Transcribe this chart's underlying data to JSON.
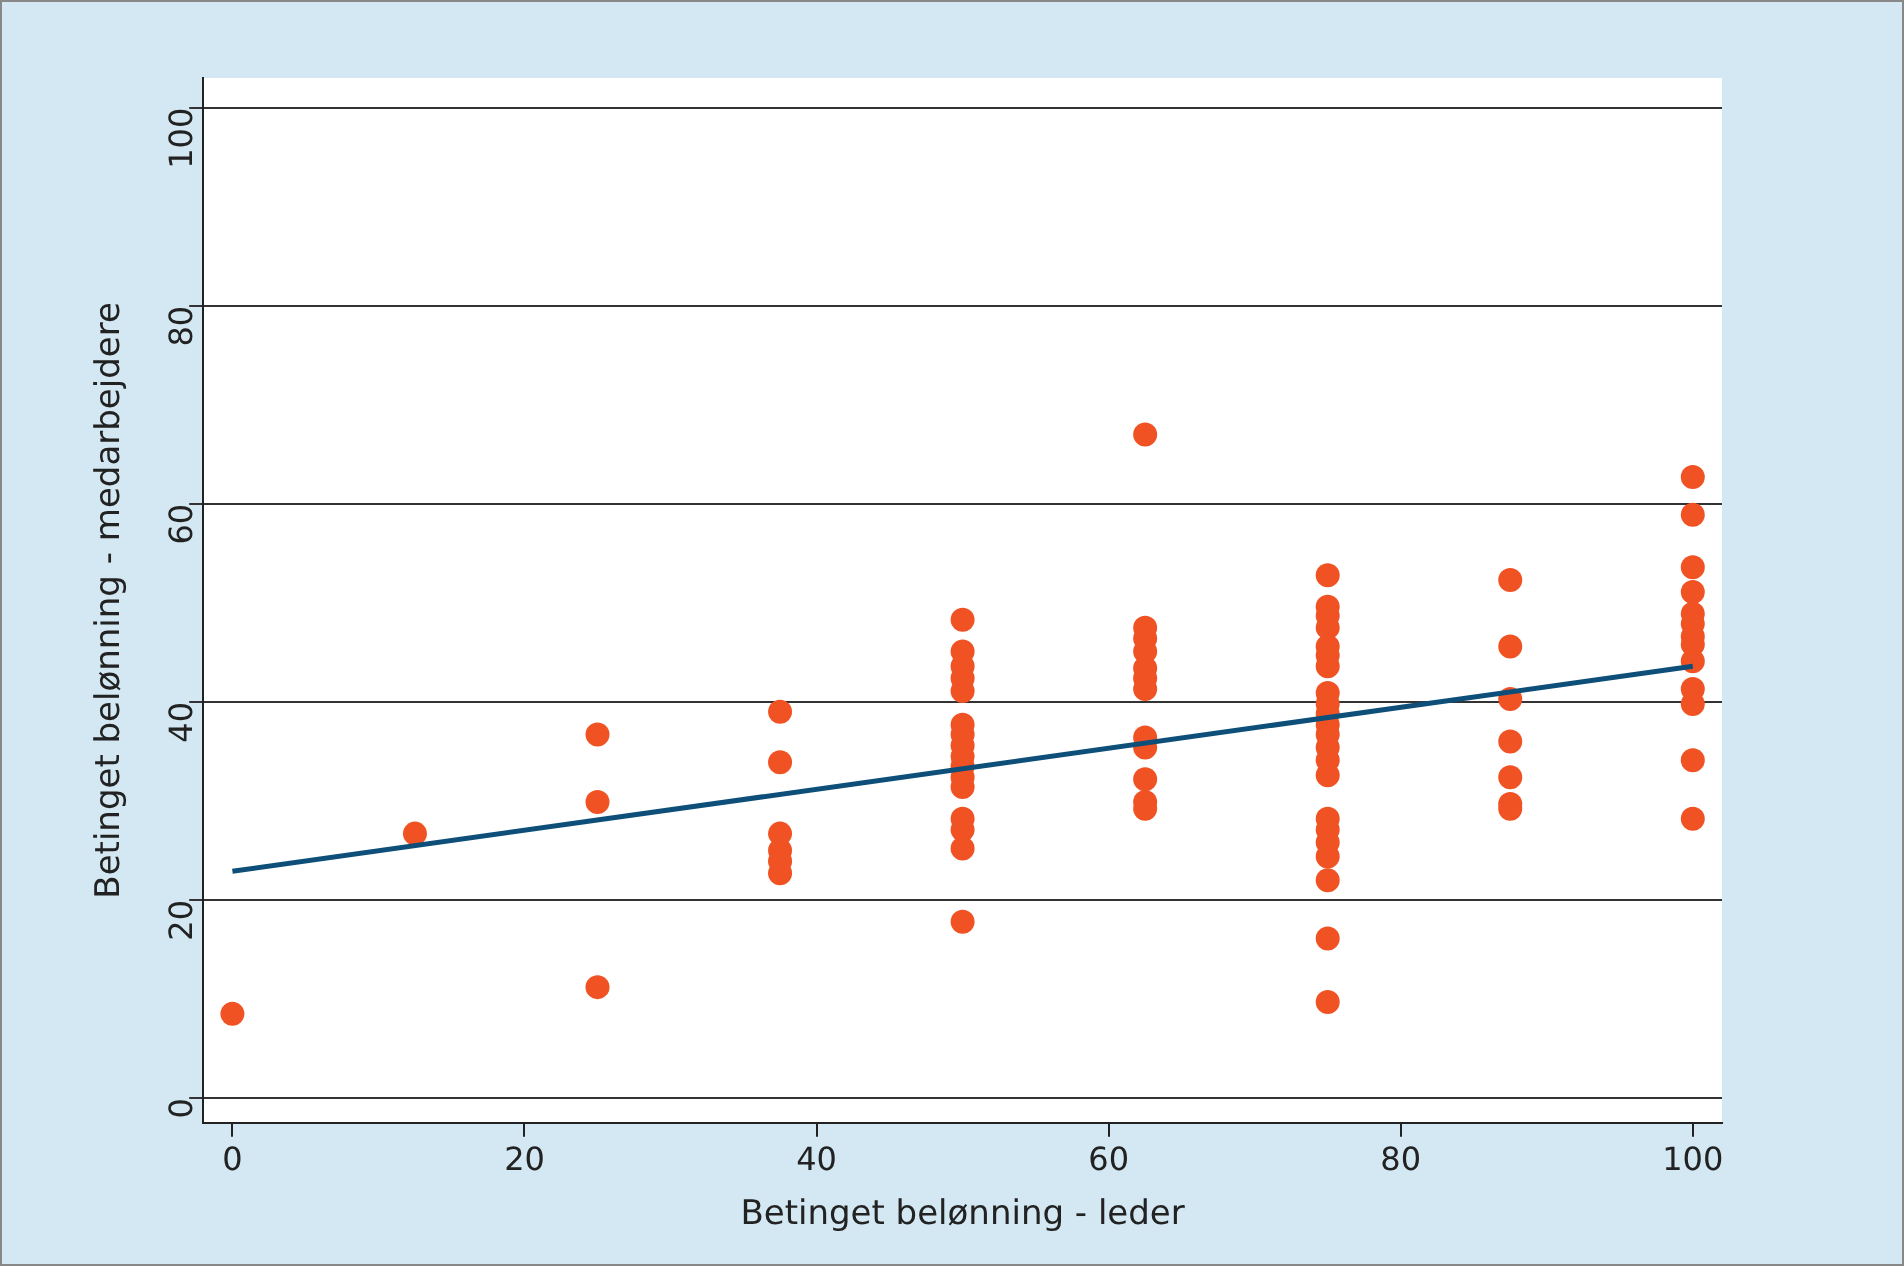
{
  "chart_data": {
    "type": "scatter",
    "xlabel": "Betinget belønning - leder",
    "ylabel": "Betinget belønning - medarbejdere",
    "xlim": [
      -2,
      102
    ],
    "ylim": [
      -2.5,
      103
    ],
    "xticks": [
      0,
      20,
      40,
      60,
      80,
      100
    ],
    "yticks": [
      0,
      20,
      40,
      60,
      80,
      100
    ],
    "grid": "y",
    "series": [
      {
        "type": "scatter",
        "color": "#f05223",
        "marker": "circle",
        "x": [
          0,
          12.5,
          25,
          25,
          25,
          37.5,
          37.5,
          37.5,
          37.5,
          37.5,
          37.5,
          50,
          50,
          50,
          50,
          50,
          50,
          50,
          50,
          50,
          50,
          50,
          50,
          50,
          50,
          50,
          50,
          62.5,
          62.5,
          62.5,
          62.5,
          62.5,
          62.5,
          62.5,
          62.5,
          62.5,
          62.5,
          62.5,
          62.5,
          75,
          75,
          75,
          75,
          75,
          75,
          75,
          75,
          75,
          75,
          75,
          75,
          75,
          75,
          75,
          75,
          75,
          75,
          75,
          75,
          75,
          75,
          87.5,
          87.5,
          87.5,
          87.5,
          87.5,
          87.5,
          87.5,
          100,
          100,
          100,
          100,
          100,
          100,
          100,
          100,
          100,
          100,
          100,
          100,
          100
        ],
        "values": [
          8.5,
          26.7,
          36.7,
          29.9,
          11.2,
          39,
          33.9,
          26.7,
          25,
          23.9,
          22.7,
          48.3,
          45.1,
          43.6,
          42.4,
          41.1,
          37.7,
          36.7,
          35.6,
          34.5,
          33.5,
          32.4,
          31.4,
          28.2,
          27.1,
          25.2,
          17.8,
          67,
          47.5,
          46.4,
          45.1,
          43.4,
          42.4,
          41.3,
          36.4,
          35.4,
          32.2,
          29.9,
          29.2,
          52.8,
          49.6,
          48.7,
          47.5,
          45.6,
          44.7,
          43.6,
          40.9,
          39.8,
          38.8,
          37.7,
          36.7,
          35.4,
          34.1,
          32.6,
          28.2,
          27.1,
          25.8,
          24.4,
          22,
          16.1,
          9.7,
          52.3,
          45.6,
          40.3,
          36,
          32.4,
          29.7,
          29.2,
          62.7,
          58.9,
          53.6,
          51.1,
          48.9,
          47.9,
          46.6,
          45.8,
          44.1,
          41.3,
          39.8,
          34.1,
          28.2
        ]
      },
      {
        "type": "line",
        "color": "#0d4f78",
        "marker": "none",
        "x": [
          0,
          100
        ],
        "values": [
          22.9,
          43.6
        ]
      }
    ]
  }
}
